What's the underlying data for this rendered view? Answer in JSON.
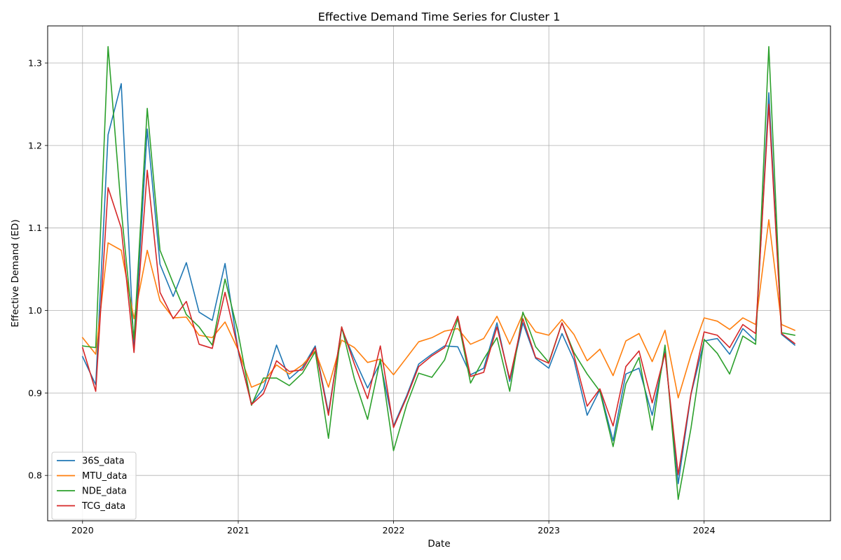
{
  "chart_data": {
    "type": "line",
    "title": "Effective Demand Time Series for Cluster 1",
    "xlabel": "Date",
    "ylabel": "Effective Demand (ED)",
    "xlim": [
      "2019-10-11",
      "2024-10-24"
    ],
    "ylim": [
      0.745,
      1.345
    ],
    "x_ticks": [
      "2020",
      "2021",
      "2022",
      "2023",
      "2024"
    ],
    "y_ticks": [
      "0.8",
      "0.9",
      "1.0",
      "1.1",
      "1.2",
      "1.3"
    ],
    "grid": true,
    "legend_position": "lower left",
    "x": [
      "2020-01",
      "2020-02",
      "2020-03",
      "2020-04",
      "2020-05",
      "2020-06",
      "2020-07",
      "2020-08",
      "2020-09",
      "2020-10",
      "2020-11",
      "2020-12",
      "2021-01",
      "2021-02",
      "2021-03",
      "2021-04",
      "2021-05",
      "2021-06",
      "2021-07",
      "2021-08",
      "2021-09",
      "2021-10",
      "2021-11",
      "2021-12",
      "2022-01",
      "2022-02",
      "2022-03",
      "2022-04",
      "2022-05",
      "2022-06",
      "2022-07",
      "2022-08",
      "2022-09",
      "2022-10",
      "2022-11",
      "2022-12",
      "2023-01",
      "2023-02",
      "2023-03",
      "2023-04",
      "2023-05",
      "2023-06",
      "2023-07",
      "2023-08",
      "2023-09",
      "2023-10",
      "2023-11",
      "2023-12",
      "2024-01",
      "2024-02",
      "2024-03",
      "2024-04",
      "2024-05",
      "2024-06",
      "2024-07",
      "2024-08"
    ],
    "series": [
      {
        "name": "36S_data",
        "color": "#1f77b4",
        "values": [
          0.944,
          0.91,
          1.213,
          1.275,
          0.951,
          1.22,
          1.056,
          1.017,
          1.058,
          0.998,
          0.988,
          1.057,
          0.95,
          0.887,
          0.905,
          0.958,
          0.917,
          0.931,
          0.957,
          0.876,
          0.978,
          0.941,
          0.906,
          0.937,
          0.86,
          0.897,
          0.935,
          0.947,
          0.957,
          0.956,
          0.922,
          0.93,
          0.985,
          0.914,
          0.985,
          0.942,
          0.93,
          0.972,
          0.94,
          0.873,
          0.904,
          0.842,
          0.923,
          0.93,
          0.873,
          0.95,
          0.79,
          0.898,
          0.963,
          0.966,
          0.947,
          0.978,
          0.963,
          1.264,
          0.971,
          0.958
        ]
      },
      {
        "name": "MTU_data",
        "color": "#ff7f0e",
        "values": [
          0.967,
          0.947,
          1.082,
          1.073,
          0.99,
          1.073,
          1.012,
          0.991,
          0.992,
          0.97,
          0.967,
          0.986,
          0.952,
          0.907,
          0.913,
          0.934,
          0.923,
          0.934,
          0.951,
          0.907,
          0.964,
          0.955,
          0.937,
          0.941,
          0.922,
          0.943,
          0.962,
          0.967,
          0.975,
          0.978,
          0.959,
          0.966,
          0.993,
          0.959,
          0.996,
          0.974,
          0.97,
          0.989,
          0.971,
          0.939,
          0.953,
          0.921,
          0.963,
          0.972,
          0.938,
          0.976,
          0.894,
          0.946,
          0.991,
          0.987,
          0.977,
          0.991,
          0.983,
          1.11,
          0.983,
          0.976
        ]
      },
      {
        "name": "NDE_data",
        "color": "#2ca02c",
        "values": [
          0.957,
          0.955,
          1.32,
          1.122,
          0.965,
          1.245,
          1.073,
          1.033,
          0.995,
          0.98,
          0.958,
          1.038,
          0.972,
          0.885,
          0.918,
          0.918,
          0.909,
          0.924,
          0.95,
          0.845,
          0.98,
          0.917,
          0.868,
          0.941,
          0.83,
          0.886,
          0.924,
          0.919,
          0.94,
          0.99,
          0.912,
          0.941,
          0.967,
          0.902,
          0.998,
          0.956,
          0.937,
          0.985,
          0.949,
          0.923,
          0.902,
          0.835,
          0.911,
          0.943,
          0.855,
          0.958,
          0.771,
          0.857,
          0.965,
          0.948,
          0.923,
          0.969,
          0.959,
          1.32,
          0.973,
          0.97
        ]
      },
      {
        "name": "TCG_data",
        "color": "#d62728",
        "values": [
          0.955,
          0.902,
          1.149,
          1.1,
          0.949,
          1.17,
          1.022,
          0.99,
          1.011,
          0.959,
          0.954,
          1.022,
          0.952,
          0.886,
          0.899,
          0.939,
          0.926,
          0.928,
          0.955,
          0.873,
          0.98,
          0.935,
          0.893,
          0.957,
          0.858,
          0.895,
          0.932,
          0.945,
          0.955,
          0.993,
          0.92,
          0.925,
          0.98,
          0.917,
          0.99,
          0.943,
          0.936,
          0.985,
          0.946,
          0.884,
          0.905,
          0.86,
          0.932,
          0.951,
          0.888,
          0.948,
          0.801,
          0.899,
          0.974,
          0.97,
          0.955,
          0.983,
          0.972,
          1.25,
          0.972,
          0.96
        ]
      }
    ]
  }
}
